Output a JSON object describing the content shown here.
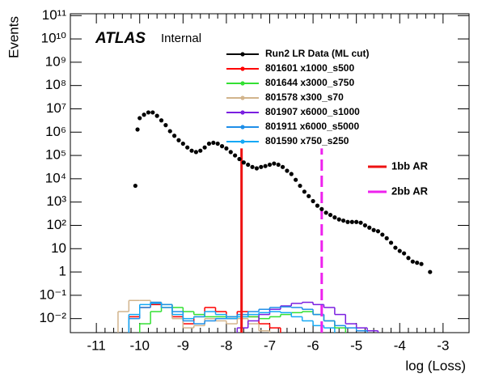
{
  "chart_data": {
    "type": "scatter",
    "atlas_label": "ATLAS",
    "atlas_status": "Internal",
    "xlabel": "log (Loss)",
    "ylabel": "Events",
    "log_y": true,
    "xlim": [
      -11.6,
      -2.4
    ],
    "ylim": [
      0.0025,
      120000000000
    ],
    "xticks": [
      -11,
      -10,
      -9,
      -8,
      -7,
      -6,
      -5,
      -4,
      -3
    ],
    "yticks": [
      {
        "value": 0.01,
        "label": "10⁻²"
      },
      {
        "value": 0.1,
        "label": "10⁻¹"
      },
      1,
      10,
      {
        "value": 100,
        "label": "10²"
      },
      {
        "value": 1000,
        "label": "10³"
      },
      {
        "value": 10000,
        "label": "10⁴"
      },
      {
        "value": 100000,
        "label": "10⁵"
      },
      {
        "value": 1000000,
        "label": "10⁶"
      },
      {
        "value": 10000000,
        "label": "10⁷"
      },
      {
        "value": 100000000,
        "label": "10⁸"
      },
      {
        "value": 1000000000,
        "label": "10⁹"
      },
      {
        "value": 10000000000,
        "label": "10¹⁰"
      },
      {
        "value": 100000000000,
        "label": "10¹¹"
      }
    ],
    "x": [
      -10.1,
      -10.05,
      -10.0,
      -9.9,
      -9.8,
      -9.7,
      -9.6,
      -9.5,
      -9.4,
      -9.3,
      -9.2,
      -9.1,
      -9.0,
      -8.9,
      -8.8,
      -8.7,
      -8.6,
      -8.5,
      -8.4,
      -8.3,
      -8.2,
      -8.1,
      -8.0,
      -7.9,
      -7.8,
      -7.7,
      -7.6,
      -7.5,
      -7.4,
      -7.3,
      -7.2,
      -7.1,
      -7.0,
      -6.9,
      -6.8,
      -6.7,
      -6.6,
      -6.5,
      -6.4,
      -6.3,
      -6.2,
      -6.1,
      -6.0,
      -5.9,
      -5.8,
      -5.7,
      -5.6,
      -5.5,
      -5.4,
      -5.3,
      -5.2,
      -5.1,
      -5.0,
      -4.9,
      -4.8,
      -4.7,
      -4.6,
      -4.5,
      -4.4,
      -4.3,
      -4.2,
      -4.1,
      -4.0,
      -3.9,
      -3.8,
      -3.7,
      -3.6,
      -3.5,
      -3.3
    ],
    "series": [
      {
        "name": "Run2 LR Data (ML cut)",
        "color": "#000000",
        "values": [
          5000,
          1300000,
          4000000,
          5600000,
          7000000,
          7000000,
          5000000,
          3200000,
          2000000,
          1100000,
          700000,
          450000,
          320000,
          220000,
          160000,
          140000,
          160000,
          220000,
          320000,
          350000,
          320000,
          250000,
          200000,
          140000,
          100000,
          70000,
          50000,
          40000,
          32000,
          28000,
          32000,
          35000,
          40000,
          45000,
          40000,
          32000,
          22000,
          16000,
          9000,
          5000,
          2800,
          1800,
          1100,
          700,
          500,
          350,
          280,
          220,
          180,
          160,
          140,
          140,
          140,
          130,
          100,
          80,
          63,
          56,
          40,
          28,
          18,
          11,
          8,
          6.3,
          4,
          2.8,
          2.5,
          2.2,
          1
        ]
      }
    ],
    "hist": {
      "bins": [
        -10.5,
        -10.25,
        -10.0,
        -9.75,
        -9.5,
        -9.25,
        -9.0,
        -8.75,
        -8.5,
        -8.25,
        -8.0,
        -7.75,
        -7.5,
        -7.25,
        -7.0,
        -6.75,
        -6.5,
        -6.25,
        -6.0,
        -5.75,
        -5.5,
        -5.25,
        -5.0,
        -4.75,
        -4.5
      ],
      "series": [
        {
          "name": "801601 x1000_s500",
          "color": "#ff0000",
          "values": [
            null,
            0.012,
            0.03,
            0.04,
            0.03,
            0.012,
            0.006,
            0.012,
            0.03,
            0.02,
            0.01,
            0.02,
            0.012,
            0.006,
            0.004,
            null,
            null,
            null,
            null,
            null,
            null,
            null,
            null,
            null
          ]
        },
        {
          "name": "801644 x3000_s750",
          "color": "#33e033",
          "values": [
            null,
            null,
            0.006,
            0.02,
            0.04,
            0.03,
            0.02,
            0.015,
            0.012,
            0.012,
            0.012,
            0.012,
            0.012,
            0.01,
            0.012,
            0.015,
            0.018,
            0.02,
            0.015,
            0.008,
            0.004,
            null,
            null,
            null
          ]
        },
        {
          "name": "801578 x300_s70",
          "color": "#d2b48c",
          "values": [
            0.02,
            0.06,
            0.06,
            0.05,
            0.03,
            0.01,
            0.004,
            0.005,
            0.01,
            0.008,
            0.006,
            0.01,
            0.006,
            0.003,
            null,
            null,
            null,
            null,
            null,
            null,
            null,
            null,
            null,
            null
          ]
        },
        {
          "name": "801907 x6000_s1000",
          "color": "#7a1fe0",
          "values": [
            null,
            null,
            null,
            null,
            null,
            null,
            null,
            null,
            null,
            null,
            null,
            0.004,
            0.008,
            0.015,
            0.025,
            0.035,
            0.045,
            0.05,
            0.04,
            0.03,
            0.015,
            0.006,
            0.004,
            0.003
          ]
        },
        {
          "name": "801911 x6000_s5000",
          "color": "#1f8fe8",
          "values": [
            null,
            0.01,
            0.03,
            0.05,
            0.04,
            0.02,
            0.008,
            0.006,
            0.008,
            0.01,
            0.012,
            0.015,
            0.02,
            0.025,
            0.03,
            0.032,
            0.03,
            0.025,
            0.015,
            0.008,
            0.005,
            0.004,
            0.003,
            null
          ]
        },
        {
          "name": "801590 x750_s250",
          "color": "#14a8f5",
          "values": [
            null,
            0.015,
            0.04,
            0.045,
            0.03,
            0.015,
            0.01,
            0.012,
            0.02,
            0.015,
            0.01,
            0.012,
            0.015,
            0.018,
            0.02,
            0.018,
            0.012,
            0.008,
            0.005,
            0.004,
            null,
            null,
            null,
            null
          ]
        }
      ]
    },
    "lines": [
      {
        "name": "1bb AR",
        "x": -7.65,
        "top": 200000,
        "color": "#ee1111",
        "dashed": false
      },
      {
        "name": "2bb AR",
        "x": -5.8,
        "top": 200000,
        "color": "#ee22ee",
        "dashed": true
      }
    ]
  }
}
